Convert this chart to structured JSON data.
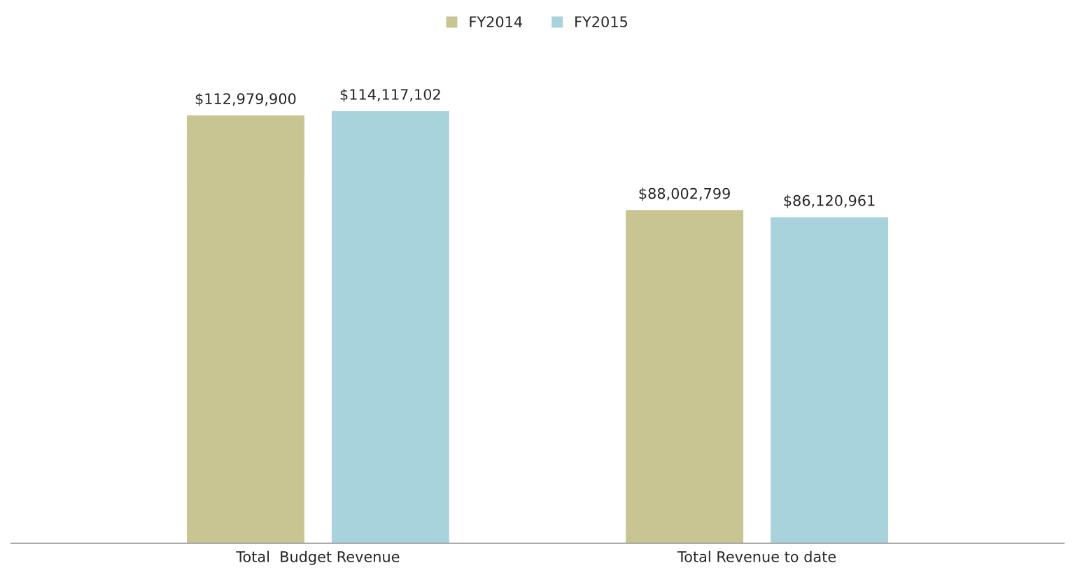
{
  "chart_data": {
    "type": "bar",
    "categories": [
      "Total  Budget Revenue",
      "Total Revenue to date"
    ],
    "series": [
      {
        "name": "FY2014",
        "color": "#c9c593",
        "values": [
          112979900,
          88002799
        ],
        "value_labels": [
          "$112,979,900",
          "$88,002,799"
        ]
      },
      {
        "name": "FY2015",
        "color": "#a8d3dc",
        "values": [
          114117102,
          86120961
        ],
        "value_labels": [
          "$114,117,102",
          "$86,120,961"
        ]
      }
    ],
    "legend": "top",
    "grid": false
  }
}
